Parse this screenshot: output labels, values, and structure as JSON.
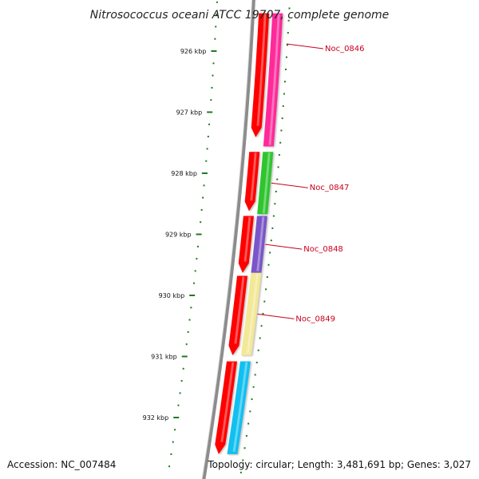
{
  "map": {
    "title": "Nitrosococcus oceani ATCC 19707, complete genome",
    "accession": "Accession: NC_007484",
    "summary": "Topology: circular; Length: 3,481,691 bp; Genes: 3,027"
  },
  "scale": {
    "ticks": [
      {
        "kbp": 926,
        "label": "926 kbp"
      },
      {
        "kbp": 927,
        "label": "927 kbp"
      },
      {
        "kbp": 928,
        "label": "928 kbp"
      },
      {
        "kbp": 929,
        "label": "929 kbp"
      },
      {
        "kbp": 930,
        "label": "930 kbp"
      },
      {
        "kbp": 931,
        "label": "931 kbp"
      },
      {
        "kbp": 932,
        "label": "932 kbp"
      }
    ]
  },
  "genes": [
    {
      "locus": "Noc_0846",
      "start_kbp": 925.38,
      "end_kbp": 927.56,
      "color": "#ff2a9a"
    },
    {
      "locus": "Noc_0847",
      "start_kbp": 927.65,
      "end_kbp": 928.67,
      "color": "#2fc52f"
    },
    {
      "locus": "Noc_0848",
      "start_kbp": 928.7,
      "end_kbp": 929.63,
      "color": "#7a55c8"
    },
    {
      "locus": "Noc_0849",
      "start_kbp": 929.63,
      "end_kbp": 930.98,
      "color": "#f2e896"
    },
    {
      "locus": "",
      "start_kbp": 931.08,
      "end_kbp": 932.6,
      "color": "#12c0f0"
    }
  ],
  "cds": [
    {
      "start_kbp": 925.38,
      "end_kbp": 927.41,
      "color": "#ff0000"
    },
    {
      "start_kbp": 927.65,
      "end_kbp": 928.62,
      "color": "#ff0000"
    },
    {
      "start_kbp": 928.7,
      "end_kbp": 929.63,
      "color": "#ff0000"
    },
    {
      "start_kbp": 929.68,
      "end_kbp": 930.98,
      "color": "#ff0000"
    },
    {
      "start_kbp": 931.08,
      "end_kbp": 932.6,
      "color": "#ff0000"
    }
  ],
  "colors": {
    "backbone": "#8c8c8c",
    "tick": "#1e7a1e",
    "label_line": "#c8001e"
  }
}
